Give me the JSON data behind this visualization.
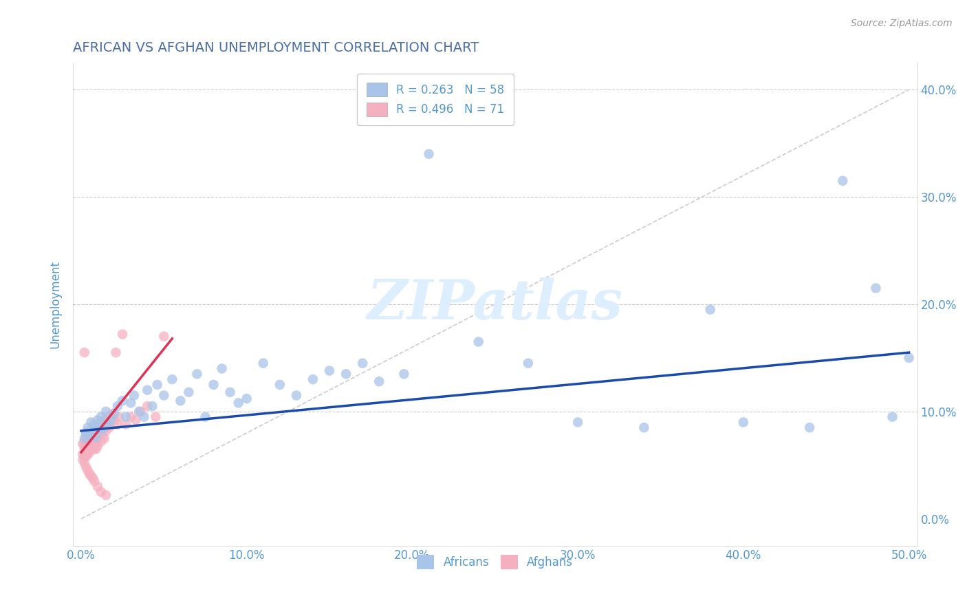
{
  "title": "AFRICAN VS AFGHAN UNEMPLOYMENT CORRELATION CHART",
  "source": "Source: ZipAtlas.com",
  "ylabel_label": "Unemployment",
  "xlim": [
    -0.005,
    0.505
  ],
  "ylim": [
    -0.025,
    0.425
  ],
  "xticks": [
    0.0,
    0.1,
    0.2,
    0.3,
    0.4,
    0.5
  ],
  "xtick_labels": [
    "0.0%",
    "10.0%",
    "20.0%",
    "30.0%",
    "40.0%",
    "50.0%"
  ],
  "yticks": [
    0.0,
    0.1,
    0.2,
    0.3,
    0.4
  ],
  "ytick_labels": [
    "0.0%",
    "10.0%",
    "20.0%",
    "30.0%",
    "40.0%"
  ],
  "african_R": 0.263,
  "african_N": 58,
  "afghan_R": 0.496,
  "afghan_N": 71,
  "african_color": "#a8c4e8",
  "afghan_color": "#f5b0c0",
  "african_trend_color": "#1a4aaa",
  "afghan_trend_color": "#dd3355",
  "ref_line_color": "#cccccc",
  "grid_color": "#cccccc",
  "title_color": "#4a6fa5",
  "axis_color": "#5599cc",
  "watermark_color": "#ddeeff",
  "background_color": "#ffffff",
  "africans_x": [
    0.002,
    0.003,
    0.004,
    0.005,
    0.006,
    0.007,
    0.008,
    0.009,
    0.01,
    0.011,
    0.012,
    0.013,
    0.015,
    0.016,
    0.018,
    0.02,
    0.022,
    0.025,
    0.027,
    0.03,
    0.032,
    0.035,
    0.038,
    0.04,
    0.043,
    0.046,
    0.05,
    0.055,
    0.06,
    0.065,
    0.07,
    0.075,
    0.08,
    0.085,
    0.09,
    0.095,
    0.1,
    0.11,
    0.12,
    0.13,
    0.14,
    0.15,
    0.16,
    0.17,
    0.18,
    0.195,
    0.21,
    0.24,
    0.27,
    0.3,
    0.34,
    0.38,
    0.4,
    0.44,
    0.46,
    0.48,
    0.49,
    0.5
  ],
  "africans_y": [
    0.075,
    0.08,
    0.085,
    0.078,
    0.09,
    0.082,
    0.088,
    0.076,
    0.092,
    0.085,
    0.095,
    0.083,
    0.1,
    0.088,
    0.092,
    0.098,
    0.105,
    0.11,
    0.095,
    0.108,
    0.115,
    0.1,
    0.095,
    0.12,
    0.105,
    0.125,
    0.115,
    0.13,
    0.11,
    0.118,
    0.135,
    0.095,
    0.125,
    0.14,
    0.118,
    0.108,
    0.112,
    0.145,
    0.125,
    0.115,
    0.13,
    0.138,
    0.135,
    0.145,
    0.128,
    0.135,
    0.34,
    0.165,
    0.145,
    0.09,
    0.085,
    0.195,
    0.09,
    0.085,
    0.315,
    0.215,
    0.095,
    0.15
  ],
  "afghans_x": [
    0.001,
    0.001,
    0.001,
    0.002,
    0.002,
    0.002,
    0.002,
    0.003,
    0.003,
    0.003,
    0.003,
    0.004,
    0.004,
    0.004,
    0.004,
    0.005,
    0.005,
    0.005,
    0.005,
    0.006,
    0.006,
    0.006,
    0.007,
    0.007,
    0.007,
    0.008,
    0.008,
    0.008,
    0.009,
    0.009,
    0.009,
    0.01,
    0.01,
    0.01,
    0.011,
    0.011,
    0.012,
    0.012,
    0.013,
    0.013,
    0.014,
    0.014,
    0.015,
    0.015,
    0.016,
    0.017,
    0.018,
    0.019,
    0.02,
    0.021,
    0.022,
    0.023,
    0.025,
    0.027,
    0.03,
    0.033,
    0.036,
    0.04,
    0.045,
    0.05,
    0.002,
    0.003,
    0.004,
    0.005,
    0.006,
    0.007,
    0.008,
    0.01,
    0.012,
    0.015,
    0.002
  ],
  "afghans_y": [
    0.06,
    0.055,
    0.07,
    0.065,
    0.058,
    0.072,
    0.068,
    0.062,
    0.075,
    0.058,
    0.08,
    0.065,
    0.07,
    0.06,
    0.078,
    0.068,
    0.075,
    0.062,
    0.082,
    0.07,
    0.065,
    0.078,
    0.072,
    0.068,
    0.08,
    0.075,
    0.065,
    0.085,
    0.07,
    0.078,
    0.065,
    0.075,
    0.08,
    0.068,
    0.078,
    0.085,
    0.072,
    0.09,
    0.078,
    0.082,
    0.075,
    0.092,
    0.082,
    0.088,
    0.095,
    0.085,
    0.09,
    0.098,
    0.092,
    0.155,
    0.088,
    0.095,
    0.172,
    0.088,
    0.095,
    0.092,
    0.1,
    0.105,
    0.095,
    0.17,
    0.052,
    0.048,
    0.045,
    0.042,
    0.04,
    0.038,
    0.035,
    0.03,
    0.025,
    0.022,
    0.155
  ],
  "african_trend_x": [
    0.0,
    0.5
  ],
  "african_trend_y": [
    0.082,
    0.155
  ],
  "afghan_trend_x": [
    0.0,
    0.055
  ],
  "afghan_trend_y": [
    0.062,
    0.168
  ],
  "ref_line_x": [
    0.0,
    0.5
  ],
  "ref_line_y": [
    0.0,
    0.4
  ]
}
